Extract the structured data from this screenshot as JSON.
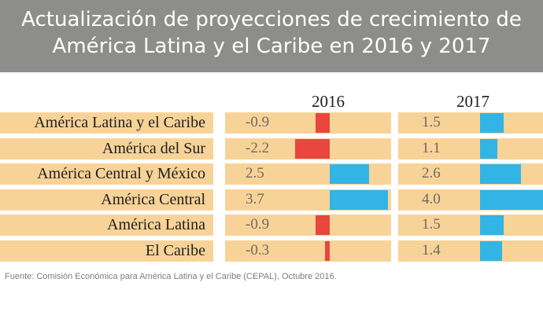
{
  "header": {
    "title_line1": "Actualización de proyecciones de crecimiento de",
    "title_line2": "América Latina y el Caribe en 2016 y 2017"
  },
  "colors": {
    "header_bg": "#8d8d8c",
    "row_bg": "#f8d398",
    "negative": "#e8463f",
    "positive": "#32b4e6"
  },
  "chart_data": {
    "type": "bar",
    "title": "Actualización de proyecciones de crecimiento de América Latina y el Caribe en 2016 y 2017",
    "categories": [
      "América Latina y el Caribe",
      "América del Sur",
      "América Central y México",
      "América Central",
      "América Latina",
      "El Caribe"
    ],
    "series": [
      {
        "name": "2016",
        "values": [
          -0.9,
          -2.2,
          2.5,
          3.7,
          -0.9,
          -0.3
        ]
      },
      {
        "name": "2017",
        "values": [
          1.5,
          1.1,
          2.6,
          4.0,
          1.5,
          1.4
        ]
      }
    ],
    "value_labels_2016": [
      "-0.9",
      "-2.2",
      "2.5",
      "3.7",
      "-0.9",
      "-0.3"
    ],
    "value_labels_2017": [
      "1.5",
      "1.1",
      "2.6",
      "4.0",
      "1.5",
      "1.4"
    ]
  },
  "source": "Fuente: Comisión Económica para América Latina y el Caribe (CEPAL), Octubre 2016."
}
